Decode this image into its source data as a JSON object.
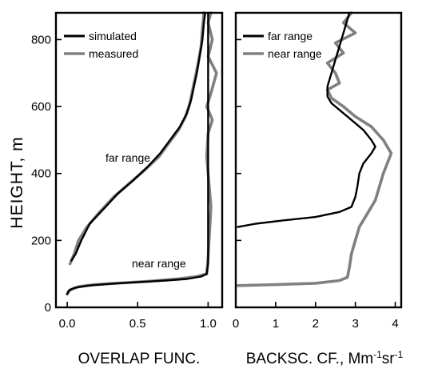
{
  "chart_data": [
    {
      "type": "line",
      "ylabel": "HEIGHT, m",
      "xlabel": "OVERLAP FUNC.",
      "xlim": [
        -0.08,
        1.1
      ],
      "ylim": [
        0,
        880
      ],
      "xticks": [
        0.0,
        0.5,
        1.0
      ],
      "xtick_labels": [
        "0.0",
        "0.5",
        "1.0"
      ],
      "yticks": [
        0,
        200,
        400,
        600,
        800
      ],
      "ytick_labels": [
        "0",
        "200",
        "400",
        "600",
        "800"
      ],
      "legend": {
        "placement": "top-left",
        "entries": [
          "simulated",
          "measured"
        ]
      },
      "annotations": [
        {
          "text": "far range",
          "x": 0.5,
          "y": 460
        },
        {
          "text": "near range",
          "x": 0.68,
          "y": 125
        }
      ],
      "series": [
        {
          "name": "simulated",
          "color": "#000000",
          "points": [
            [
              0.03,
              140
            ],
            [
              0.06,
              160
            ],
            [
              0.1,
              200
            ],
            [
              0.16,
              250
            ],
            [
              0.25,
              290
            ],
            [
              0.36,
              340
            ],
            [
              0.47,
              380
            ],
            [
              0.57,
              420
            ],
            [
              0.66,
              460
            ],
            [
              0.73,
              500
            ],
            [
              0.8,
              540
            ],
            [
              0.85,
              580
            ],
            [
              0.88,
              620
            ],
            [
              0.9,
              660
            ],
            [
              0.92,
              700
            ],
            [
              0.94,
              750
            ],
            [
              0.96,
              800
            ],
            [
              0.97,
              850
            ],
            [
              0.98,
              880
            ]
          ]
        },
        {
          "name": "measured",
          "color": "#808080",
          "points": [
            [
              0.02,
              130
            ],
            [
              0.05,
              160
            ],
            [
              0.08,
              200
            ],
            [
              0.14,
              240
            ],
            [
              0.22,
              280
            ],
            [
              0.33,
              330
            ],
            [
              0.44,
              370
            ],
            [
              0.55,
              410
            ],
            [
              0.65,
              450
            ],
            [
              0.72,
              490
            ],
            [
              0.79,
              530
            ],
            [
              0.84,
              570
            ],
            [
              0.87,
              610
            ],
            [
              0.89,
              650
            ],
            [
              0.91,
              690
            ],
            [
              0.93,
              730
            ],
            [
              0.95,
              780
            ],
            [
              0.96,
              830
            ],
            [
              0.97,
              880
            ]
          ]
        },
        {
          "name": "simulated near range",
          "color": "#000000",
          "points": [
            [
              0.0,
              40
            ],
            [
              0.01,
              50
            ],
            [
              0.05,
              58
            ],
            [
              0.15,
              65
            ],
            [
              0.3,
              70
            ],
            [
              0.5,
              75
            ],
            [
              0.7,
              80
            ],
            [
              0.85,
              85
            ],
            [
              0.95,
              92
            ],
            [
              0.99,
              100
            ],
            [
              1.0,
              130
            ],
            [
              1.0,
              300
            ],
            [
              1.0,
              500
            ],
            [
              1.0,
              700
            ],
            [
              1.0,
              880
            ]
          ]
        },
        {
          "name": "measured near range",
          "color": "#808080",
          "points": [
            [
              0.0,
              40
            ],
            [
              0.02,
              52
            ],
            [
              0.08,
              62
            ],
            [
              0.2,
              68
            ],
            [
              0.38,
              73
            ],
            [
              0.58,
              78
            ],
            [
              0.78,
              85
            ],
            [
              0.92,
              92
            ],
            [
              0.99,
              100
            ],
            [
              1.0,
              150
            ],
            [
              1.02,
              300
            ],
            [
              0.99,
              450
            ],
            [
              1.0,
              520
            ],
            [
              1.03,
              560
            ],
            [
              0.99,
              600
            ],
            [
              1.02,
              640
            ],
            [
              1.06,
              700
            ],
            [
              1.0,
              750
            ],
            [
              1.03,
              800
            ],
            [
              1.0,
              850
            ],
            [
              1.02,
              880
            ]
          ]
        }
      ]
    },
    {
      "type": "line",
      "xlabel": "BACKSC. CF., Mm",
      "xlabel_sup1": "-1",
      "xlabel_mid": "sr",
      "xlabel_sup2": "-1",
      "xlim": [
        0,
        4.15
      ],
      "ylim": [
        0,
        880
      ],
      "xticks": [
        0,
        1,
        2,
        3,
        4
      ],
      "xtick_labels": [
        "0",
        "1",
        "2",
        "3",
        "4"
      ],
      "legend": {
        "placement": "top-left",
        "entries": [
          "far range",
          "near range"
        ]
      },
      "series": [
        {
          "name": "far range",
          "color": "#000000",
          "points": [
            [
              0.05,
              240
            ],
            [
              0.5,
              250
            ],
            [
              1.2,
              260
            ],
            [
              2.0,
              270
            ],
            [
              2.6,
              285
            ],
            [
              2.9,
              300
            ],
            [
              3.0,
              330
            ],
            [
              3.05,
              360
            ],
            [
              3.1,
              400
            ],
            [
              3.2,
              430
            ],
            [
              3.4,
              460
            ],
            [
              3.5,
              480
            ],
            [
              3.4,
              500
            ],
            [
              3.2,
              530
            ],
            [
              2.9,
              560
            ],
            [
              2.6,
              590
            ],
            [
              2.4,
              610
            ],
            [
              2.3,
              630
            ],
            [
              2.3,
              660
            ],
            [
              2.4,
              700
            ],
            [
              2.5,
              740
            ],
            [
              2.6,
              780
            ],
            [
              2.7,
              820
            ],
            [
              2.8,
              860
            ],
            [
              2.85,
              880
            ]
          ]
        },
        {
          "name": "near range",
          "color": "#808080",
          "points": [
            [
              0.05,
              65
            ],
            [
              1.0,
              68
            ],
            [
              2.0,
              72
            ],
            [
              2.6,
              80
            ],
            [
              2.8,
              90
            ],
            [
              2.85,
              120
            ],
            [
              2.9,
              160
            ],
            [
              3.0,
              200
            ],
            [
              3.1,
              240
            ],
            [
              3.3,
              280
            ],
            [
              3.5,
              320
            ],
            [
              3.6,
              360
            ],
            [
              3.7,
              400
            ],
            [
              3.8,
              430
            ],
            [
              3.9,
              460
            ],
            [
              3.7,
              500
            ],
            [
              3.4,
              540
            ],
            [
              3.0,
              570
            ],
            [
              2.7,
              600
            ],
            [
              2.4,
              625
            ],
            [
              2.3,
              650
            ],
            [
              2.6,
              670
            ],
            [
              2.5,
              700
            ],
            [
              2.3,
              730
            ],
            [
              2.7,
              760
            ],
            [
              2.5,
              790
            ],
            [
              3.0,
              820
            ],
            [
              2.7,
              850
            ],
            [
              2.9,
              880
            ]
          ]
        }
      ]
    }
  ]
}
